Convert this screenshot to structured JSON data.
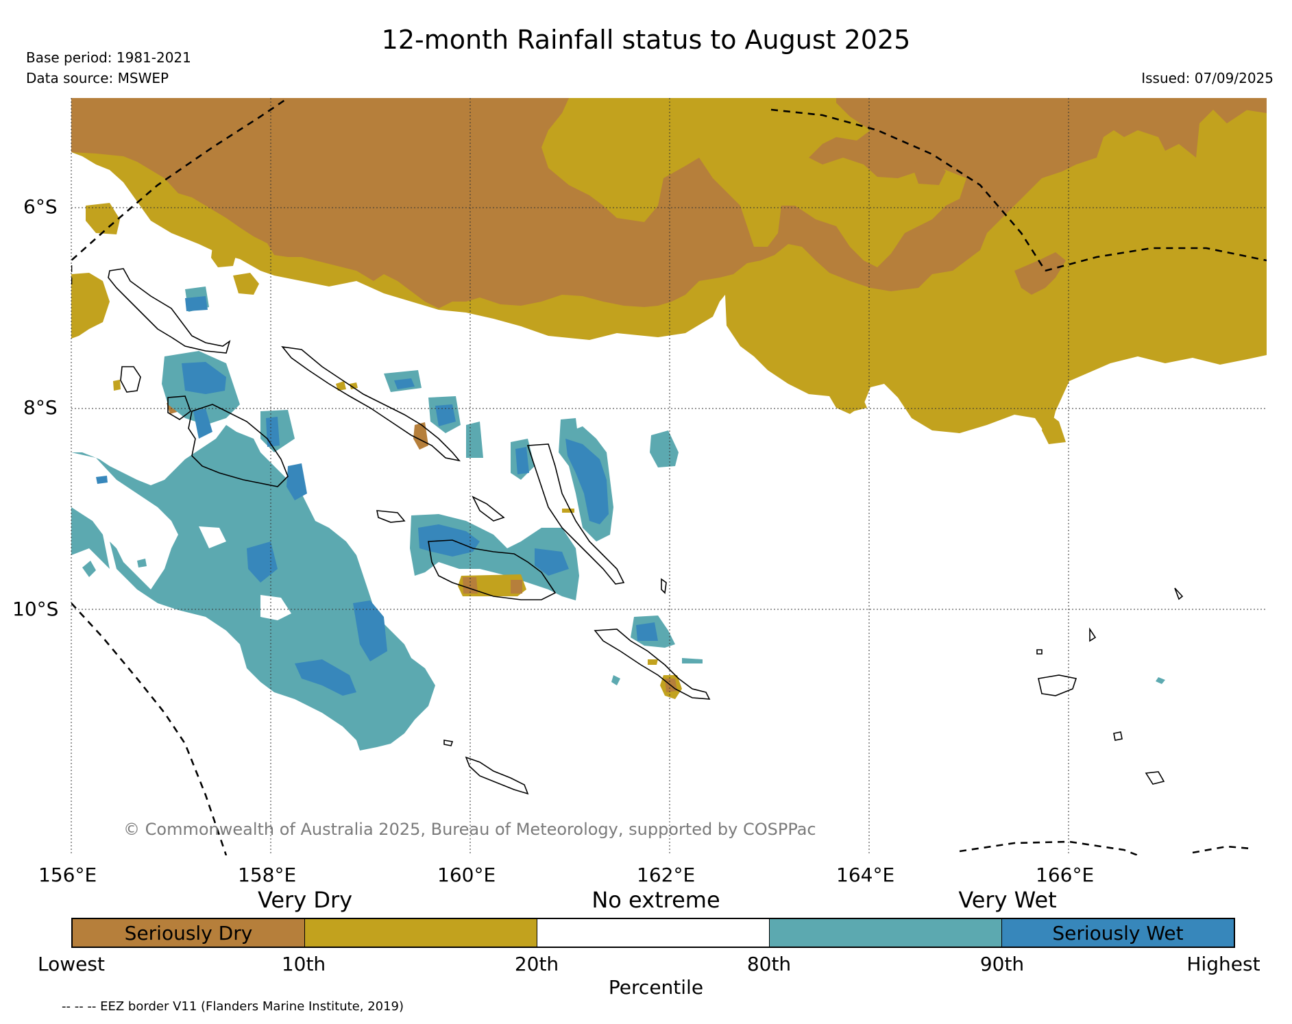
{
  "title": "12-month Rainfall status to August 2025",
  "base_period": "Base period: 1981-2021",
  "data_source": "Data source: MSWEP",
  "issued": "Issued: 07/09/2025",
  "copyright": "© Commonwealth of Australia 2025, Bureau of Meteorology, supported by COSPPac",
  "footnote": "-- -- -- EEZ border V11 (Flanders Marine Institute, 2019)",
  "map": {
    "lat_labels": [
      "6°S",
      "8°S",
      "10°S"
    ],
    "lon_labels": [
      "156°E",
      "158°E",
      "160°E",
      "162°E",
      "164°E",
      "166°E"
    ]
  },
  "legend": {
    "categories": {
      "very_dry": "Very Dry",
      "no_extreme": "No extreme",
      "very_wet": "Very Wet"
    },
    "segments": [
      {
        "label": "Seriously Dry",
        "color": "#b67f3b"
      },
      {
        "label": "",
        "color": "#c2a21e"
      },
      {
        "label": "",
        "color": "#ffffff"
      },
      {
        "label": "",
        "color": "#5ca9b0"
      },
      {
        "label": "Seriously Wet",
        "color": "#3787bb"
      }
    ],
    "ticks": [
      "Lowest",
      "10th",
      "20th",
      "80th",
      "90th",
      "Highest"
    ],
    "axis_title": "Percentile"
  },
  "colors": {
    "seriously_dry": "#b67f3b",
    "very_dry": "#c2a21e",
    "very_wet": "#5ca9b0",
    "seriously_wet": "#3787bb"
  }
}
